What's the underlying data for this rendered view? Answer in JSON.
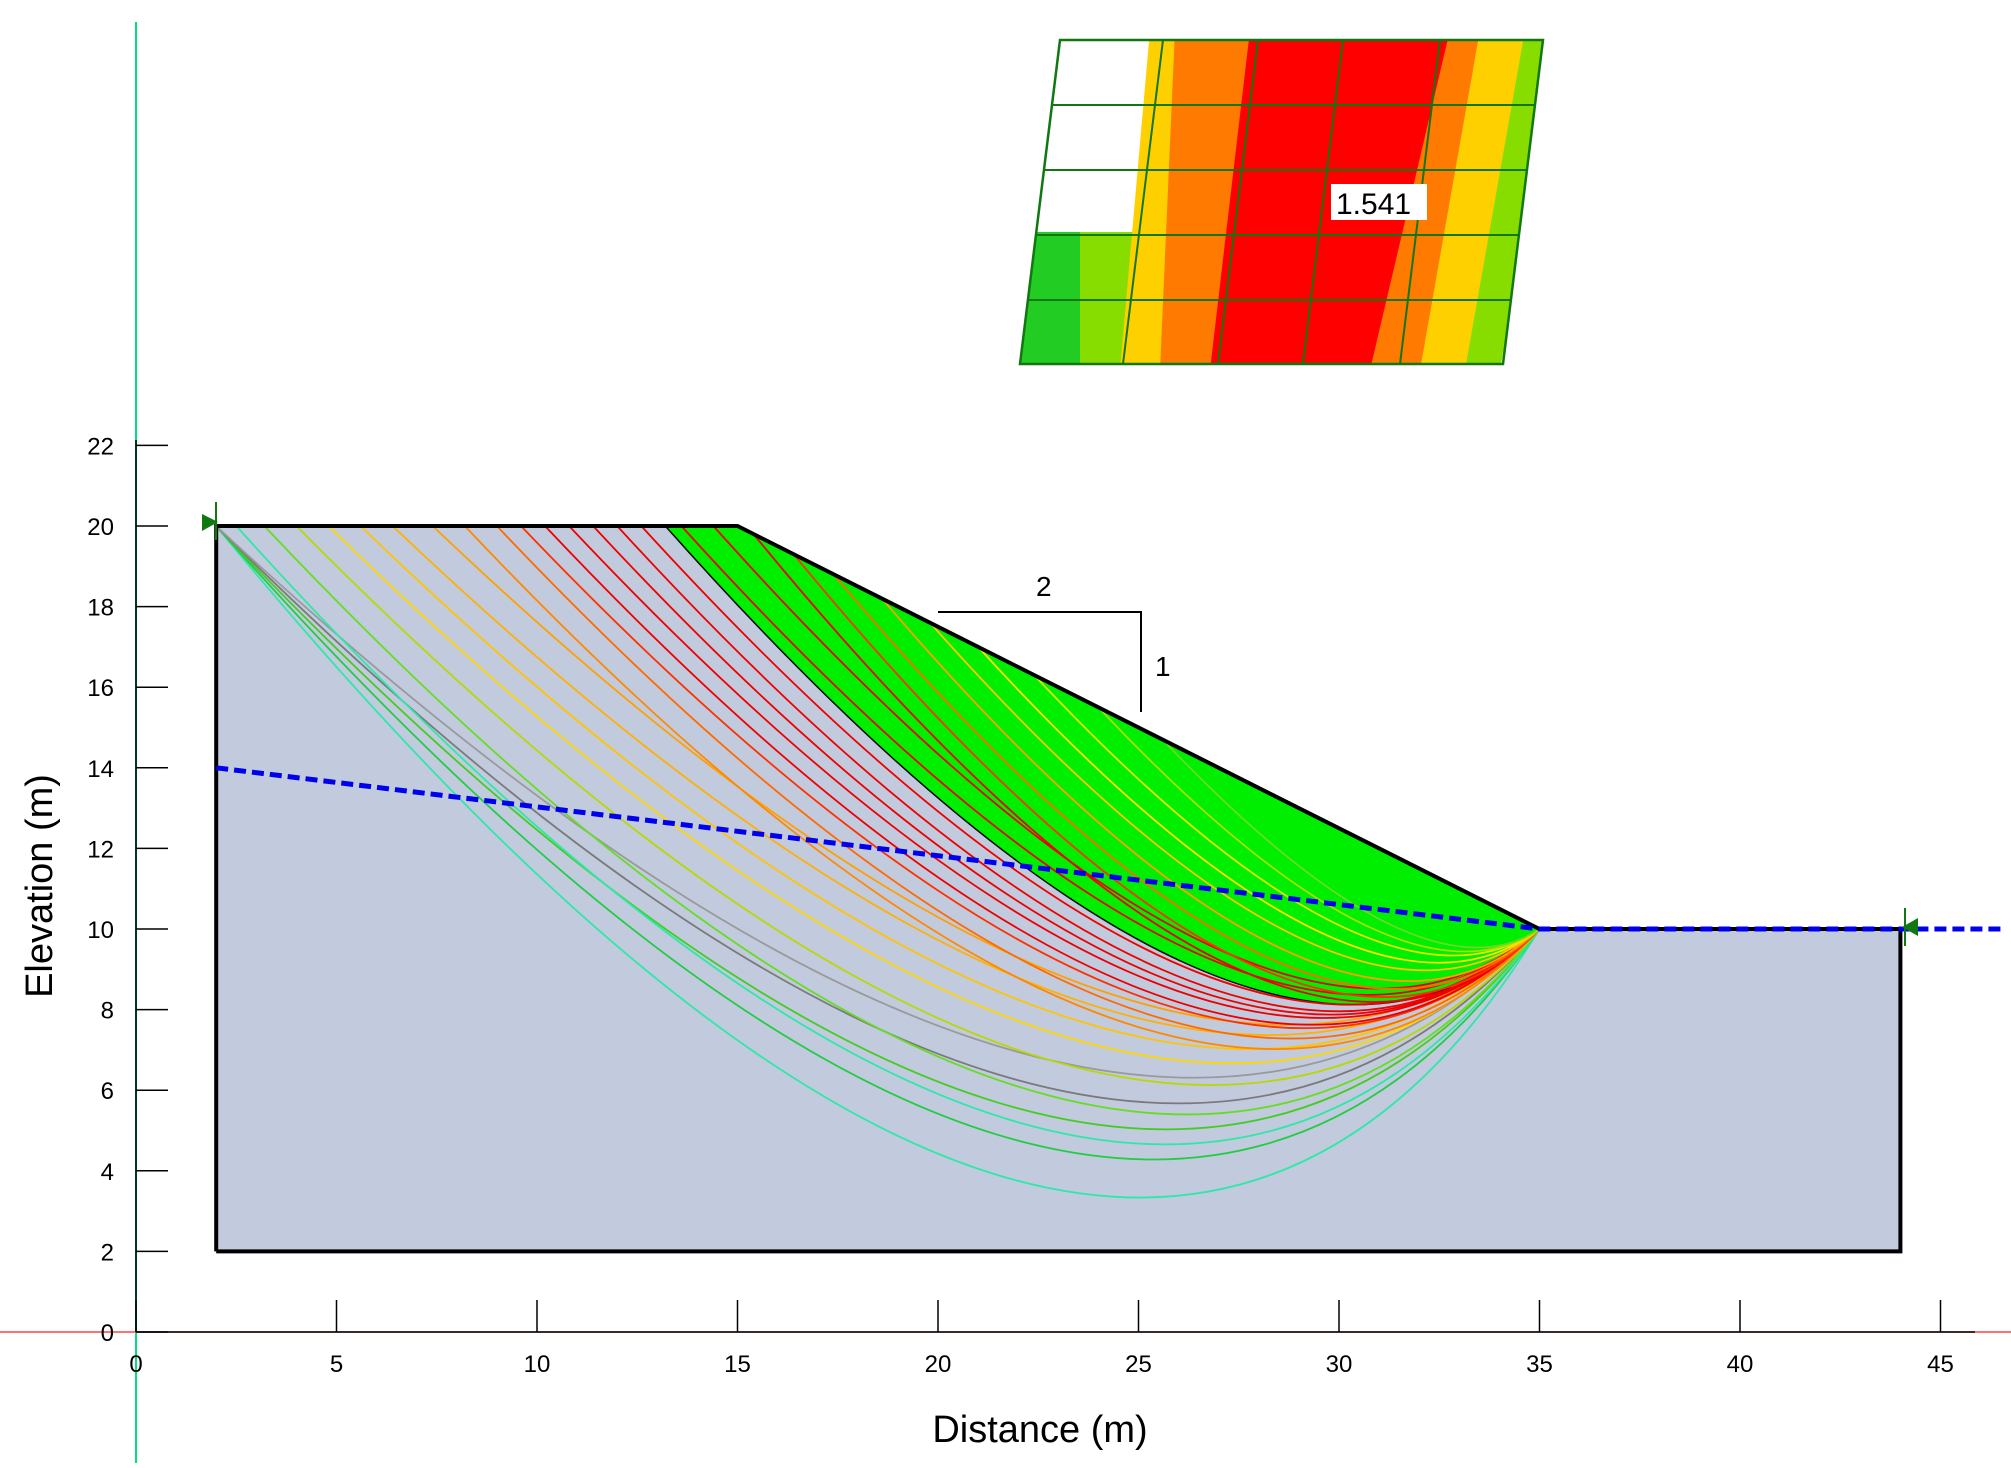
{
  "chart_data": {
    "type": "line",
    "title": "",
    "xlabel": "Distance (m)",
    "ylabel": "Elevation (m)",
    "xlim": [
      0,
      46.5
    ],
    "ylim": [
      0,
      22
    ],
    "xticks": [
      0,
      5,
      10,
      15,
      20,
      25,
      30,
      35,
      40,
      45
    ],
    "yticks": [
      0,
      2,
      4,
      6,
      8,
      10,
      12,
      14,
      16,
      18,
      20,
      22
    ],
    "x_tick_labels": [
      "0",
      "5",
      "10",
      "15",
      "20",
      "25",
      "30",
      "35",
      "40",
      "45"
    ],
    "y_tick_labels": [
      "0",
      "2",
      "4",
      "6",
      "8",
      "10",
      "12",
      "14",
      "16",
      "18",
      "20",
      "22"
    ],
    "slope_geometry": [
      [
        2,
        2
      ],
      [
        2,
        20
      ],
      [
        15,
        20
      ],
      [
        35,
        10
      ],
      [
        44,
        10
      ],
      [
        44,
        2
      ]
    ],
    "slope_ratio": {
      "horizontal": "2",
      "vertical": "1"
    },
    "water_table": [
      [
        2,
        14
      ],
      [
        35,
        10
      ],
      [
        46.5,
        10
      ]
    ],
    "toe_point": [
      35,
      10
    ],
    "minimum_factor_of_safety": "1.541",
    "critical_surface": {
      "entry_x": 13.2,
      "exit_x": 35,
      "sagitta": 3.3
    },
    "slip_surfaces": [
      {
        "entry_x": 2.0,
        "sagitta": 8.6,
        "color": "#2ee8a8"
      },
      {
        "entry_x": 2.0,
        "sagitta": 7.6,
        "color": "#22cc44"
      },
      {
        "entry_x": 2.0,
        "sagitta": 6.8,
        "color": "#44cc22"
      },
      {
        "entry_x": 2.0,
        "sagitta": 6.1,
        "color": "#7a7a7a"
      },
      {
        "entry_x": 2.0,
        "sagitta": 5.4,
        "color": "#9a9a9a"
      },
      {
        "entry_x": 2.5,
        "sagitta": 7.2,
        "color": "#2ee8a8"
      },
      {
        "entry_x": 3.2,
        "sagitta": 6.4,
        "color": "#66dd22"
      },
      {
        "entry_x": 4.0,
        "sagitta": 5.6,
        "color": "#b8d800"
      },
      {
        "entry_x": 4.8,
        "sagitta": 5.0,
        "color": "#ffd700"
      },
      {
        "entry_x": 5.6,
        "sagitta": 4.6,
        "color": "#ffc400"
      },
      {
        "entry_x": 6.4,
        "sagitta": 4.2,
        "color": "#ffb000"
      },
      {
        "entry_x": 7.4,
        "sagitta": 3.9,
        "color": "#ffa000"
      },
      {
        "entry_x": 8.2,
        "sagitta": 4.6,
        "color": "#ff8800"
      },
      {
        "entry_x": 9.0,
        "sagitta": 4.3,
        "color": "#ff6a00"
      },
      {
        "entry_x": 9.6,
        "sagitta": 4.0,
        "color": "#ff3000"
      },
      {
        "entry_x": 10.2,
        "sagitta": 3.9,
        "color": "#ee0000"
      },
      {
        "entry_x": 10.8,
        "sagitta": 3.7,
        "color": "#ee0000"
      },
      {
        "entry_x": 11.4,
        "sagitta": 3.6,
        "color": "#ee0000"
      },
      {
        "entry_x": 12.0,
        "sagitta": 3.5,
        "color": "#ee0000"
      },
      {
        "entry_x": 12.6,
        "sagitta": 3.3,
        "color": "#ee0000"
      },
      {
        "entry_x": 13.6,
        "sagitta": 3.0,
        "color": "#ee0000"
      },
      {
        "entry_x": 14.4,
        "sagitta": 2.8,
        "color": "#ee0000"
      },
      {
        "entry_x": 15.4,
        "sagitta": 3.2,
        "color": "#ee0000"
      },
      {
        "entry_x": 16.4,
        "sagitta": 3.0,
        "color": "#ff3000"
      },
      {
        "entry_x": 17.4,
        "sagitta": 2.7,
        "color": "#ff6a00"
      },
      {
        "entry_x": 18.6,
        "sagitta": 2.4,
        "color": "#ffa000"
      },
      {
        "entry_x": 19.8,
        "sagitta": 2.0,
        "color": "#ffc400"
      },
      {
        "entry_x": 21.0,
        "sagitta": 1.7,
        "color": "#ffe000"
      },
      {
        "entry_x": 22.4,
        "sagitta": 1.4,
        "color": "#e0e800"
      },
      {
        "entry_x": 24.0,
        "sagitta": 1.2,
        "color": "#a8e000"
      },
      {
        "entry_x": 25.6,
        "sagitta": 1.0,
        "color": "#66dd22"
      }
    ],
    "center_grid_contours": [
      {
        "label": "fs-band-6",
        "color": "#ffffff"
      },
      {
        "label": "fs-band-5",
        "color": "#22cc22"
      },
      {
        "label": "fs-band-4",
        "color": "#88dd00"
      },
      {
        "label": "fs-band-3",
        "color": "#ffd000"
      },
      {
        "label": "fs-band-2",
        "color": "#ff7a00"
      },
      {
        "label": "fs-band-1",
        "color": "#ff0000"
      }
    ]
  },
  "colors": {
    "slope_fill": "#c2cade",
    "critical_fill": "#00ee00",
    "water_table": "#0000ee",
    "y_axis_guide": "#00e080",
    "x_axis_guide": "#ff4444",
    "grid_line": "#117711"
  }
}
